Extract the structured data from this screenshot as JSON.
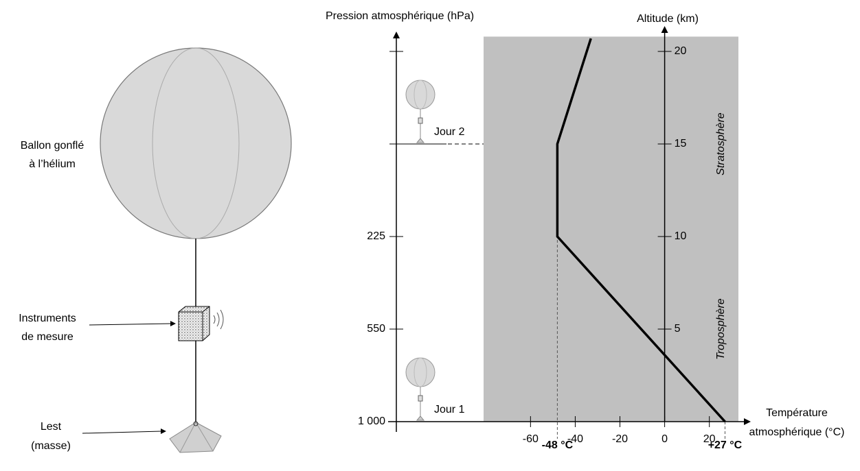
{
  "chart_data": {
    "type": "line",
    "x": [
      27,
      -48,
      -48,
      -33
    ],
    "values": [
      0,
      10,
      15,
      20.7
    ],
    "color": "#000000",
    "xlim": [
      -81,
      33
    ],
    "ylim": [
      0,
      20.8
    ],
    "xticks": [
      -60,
      -40,
      -20,
      0,
      20
    ],
    "yticks": [
      5,
      10,
      15,
      20
    ],
    "x_label": [
      "Température",
      "atmosphérique (°C)"
    ],
    "y_label": "Altitude (km)",
    "pressure_axis": {
      "title": "Pression atmosphérique (hPa)",
      "ticks": [
        {
          "value": 1000,
          "label": "1 000",
          "altitude": 0
        },
        {
          "value": 550,
          "label": "550",
          "altitude": 5
        },
        {
          "value": 225,
          "label": "225",
          "altitude": 10
        }
      ]
    },
    "layers": [
      {
        "name": "Troposphère",
        "altitude": 5
      },
      {
        "name": "Stratosphère",
        "altitude": 15
      }
    ],
    "days": [
      {
        "label": "Jour 1",
        "altitude": 0
      },
      {
        "label": "Jour 2",
        "altitude": 15
      }
    ],
    "annotations": [
      {
        "text": "-48 °C",
        "x": -48
      },
      {
        "text": "+27 °C",
        "x": 27
      }
    ]
  },
  "diagram": {
    "labels": [
      [
        "Ballon gonflé",
        "à l’hélium"
      ],
      [
        "Instruments",
        "de mesure"
      ],
      [
        "Lest",
        "(masse)"
      ]
    ]
  }
}
